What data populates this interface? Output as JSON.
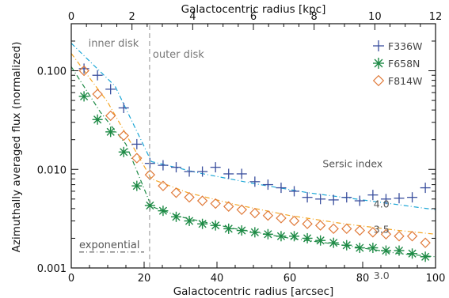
{
  "chart_data": {
    "type": "scatter",
    "title": "",
    "xlabel": "Galactocentric radius [arcsec]",
    "x2label": "Galactocentric radius [kpc]",
    "ylabel": "Azimuthally averaged flux (normalized)",
    "xlim": [
      0,
      100
    ],
    "x2lim": [
      0,
      12
    ],
    "ylim": [
      0.001,
      0.3
    ],
    "yscale": "log",
    "grid": false,
    "legend_position": "top-right",
    "xticks": [
      0,
      20,
      40,
      60,
      80,
      100
    ],
    "xtick_labels": [
      "0",
      "20",
      "40",
      "60",
      "80",
      "100"
    ],
    "x2ticks": [
      0,
      2,
      4,
      6,
      8,
      10,
      12
    ],
    "x2tick_labels": [
      "0",
      "2",
      "4",
      "6",
      "8",
      "10",
      "12"
    ],
    "yticks": [
      0.001,
      0.01,
      0.1
    ],
    "ytick_labels": [
      "0.001",
      "0.010",
      "0.100"
    ],
    "annotations": {
      "inner": "inner disk",
      "outer": "outer disk",
      "boundary_x": 21.5,
      "sersic_title": "Sersic index",
      "exponential": "exponential",
      "exponential_y": 0.00145
    },
    "series": [
      {
        "name": "F336W",
        "marker": "plus",
        "color": "#3a4f9e",
        "x": [
          3.5,
          7.2,
          10.8,
          14.4,
          18,
          21.6,
          25.2,
          28.8,
          32.4,
          36,
          39.6,
          43.2,
          46.8,
          50.4,
          54,
          57.6,
          61.2,
          64.8,
          68.4,
          72,
          75.6,
          79.2,
          82.8,
          86.4,
          90,
          93.6,
          97.2
        ],
        "values": [
          0.105,
          0.09,
          0.065,
          0.042,
          0.018,
          0.0115,
          0.011,
          0.0105,
          0.0095,
          0.0095,
          0.0105,
          0.009,
          0.009,
          0.0075,
          0.007,
          0.0065,
          0.006,
          0.0052,
          0.005,
          0.0049,
          0.0052,
          0.0048,
          0.0055,
          0.005,
          0.0051,
          0.0052,
          0.0065
        ]
      },
      {
        "name": "F658N",
        "marker": "asterisk",
        "color": "#1d8a45",
        "x": [
          3.5,
          7.2,
          10.8,
          14.4,
          18,
          21.6,
          25.2,
          28.8,
          32.4,
          36,
          39.6,
          43.2,
          46.8,
          50.4,
          54,
          57.6,
          61.2,
          64.8,
          68.4,
          72,
          75.6,
          79.2,
          82.8,
          86.4,
          90,
          93.6,
          97.2
        ],
        "values": [
          0.055,
          0.032,
          0.024,
          0.015,
          0.0068,
          0.0043,
          0.0038,
          0.0033,
          0.003,
          0.0028,
          0.0027,
          0.0025,
          0.0024,
          0.0023,
          0.0022,
          0.0021,
          0.0021,
          0.002,
          0.0019,
          0.0018,
          0.0017,
          0.0016,
          0.0016,
          0.0015,
          0.0015,
          0.0014,
          0.0013
        ]
      },
      {
        "name": "F814W",
        "marker": "diamond",
        "color": "#e07a3a",
        "x": [
          3.5,
          7.2,
          10.8,
          14.4,
          18,
          21.6,
          25.2,
          28.8,
          32.4,
          36,
          39.6,
          43.2,
          46.8,
          50.4,
          54,
          57.6,
          61.2,
          64.8,
          68.4,
          72,
          75.6,
          79.2,
          82.8,
          86.4,
          90,
          93.6,
          97.2
        ],
        "values": [
          0.1,
          0.058,
          0.035,
          0.022,
          0.013,
          0.0088,
          0.0068,
          0.0058,
          0.0052,
          0.0048,
          0.0045,
          0.0042,
          0.0039,
          0.0036,
          0.0034,
          0.0032,
          0.003,
          0.0028,
          0.0027,
          0.0025,
          0.0025,
          0.0024,
          0.0023,
          0.0022,
          0.0021,
          0.0021,
          0.0018
        ]
      }
    ],
    "fits": [
      {
        "label": "4.0",
        "color": "#1aa6d6",
        "x": [
          0,
          12,
          22,
          35,
          50,
          65,
          80,
          100
        ],
        "values": [
          0.19,
          0.07,
          0.012,
          0.0092,
          0.0072,
          0.0058,
          0.0049,
          0.0039
        ]
      },
      {
        "label": "3.5",
        "color": "#f5a623",
        "x": [
          0,
          10,
          22,
          32,
          45,
          60,
          75,
          90,
          100
        ],
        "values": [
          0.15,
          0.048,
          0.008,
          0.0058,
          0.0044,
          0.0034,
          0.0028,
          0.0024,
          0.0022
        ]
      },
      {
        "label": "3.0",
        "color": "#1d8a45",
        "x": [
          0,
          8,
          15,
          22,
          30,
          45,
          60,
          75,
          90,
          100
        ],
        "values": [
          0.11,
          0.038,
          0.018,
          0.0042,
          0.0033,
          0.0025,
          0.002,
          0.0017,
          0.0014,
          0.0013
        ]
      }
    ]
  }
}
